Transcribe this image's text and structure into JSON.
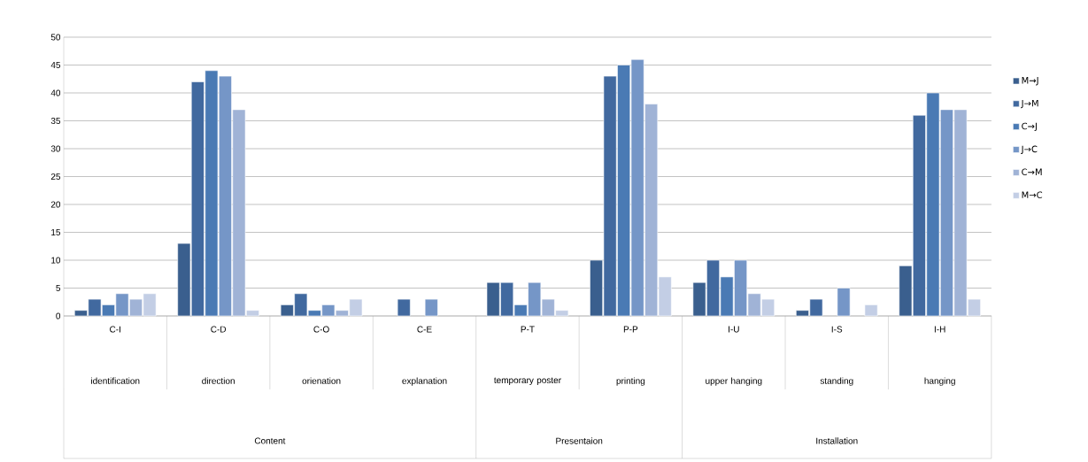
{
  "chart_data": {
    "type": "bar",
    "categories": [
      "C-I",
      "C-D",
      "C-O",
      "C-E",
      "P-T",
      "P-P",
      "I-U",
      "I-S",
      "I-H"
    ],
    "series": [
      {
        "name": "M→J",
        "color": "#3a5f8e",
        "values": [
          1,
          13,
          2,
          null,
          6,
          10,
          6,
          1,
          9
        ]
      },
      {
        "name": "J→M",
        "color": "#41699f",
        "values": [
          3,
          42,
          4,
          3,
          6,
          43,
          10,
          3,
          36
        ]
      },
      {
        "name": "C→J",
        "color": "#4a7ab4",
        "values": [
          2,
          44,
          1,
          null,
          2,
          45,
          7,
          null,
          40
        ]
      },
      {
        "name": "J→C",
        "color": "#7596c7",
        "values": [
          4,
          43,
          2,
          3,
          6,
          46,
          10,
          5,
          37
        ]
      },
      {
        "name": "C→M",
        "color": "#a0b3d6",
        "values": [
          3,
          37,
          1,
          null,
          3,
          38,
          4,
          null,
          37
        ]
      },
      {
        "name": "M→C",
        "color": "#c3cee5",
        "values": [
          4,
          1,
          3,
          null,
          1,
          7,
          3,
          2,
          3
        ]
      }
    ],
    "ylim": [
      0,
      50
    ],
    "yticks": [
      0,
      5,
      10,
      15,
      20,
      25,
      30,
      35,
      40,
      45,
      50
    ],
    "grid": "y",
    "legend": "right",
    "annotations": [
      "identification",
      "direction",
      "orienation",
      "explanation",
      "temporary poster",
      "printing",
      "upper hanging",
      "standing",
      "hanging",
      "Content",
      "Presentaion",
      "Installation"
    ]
  }
}
